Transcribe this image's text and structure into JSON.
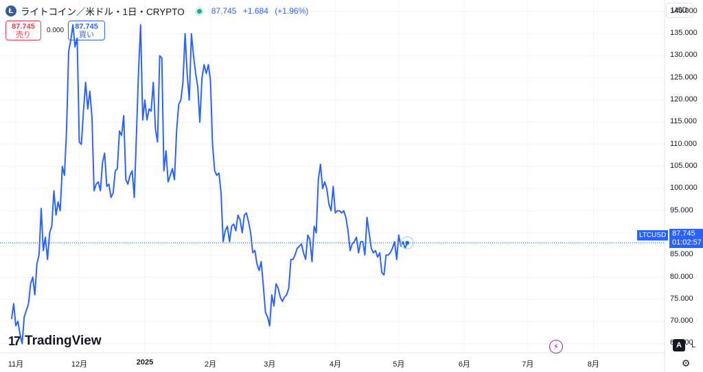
{
  "header": {
    "logo_letter": "Ł",
    "title": "ライトコイン／米ドル・1日・CRYPTO",
    "price": "87.745",
    "change": "+1.684",
    "change_pct": "(+1.96%)"
  },
  "trade": {
    "sell_price": "87.745",
    "sell_label": "売り",
    "spread": "0.000",
    "buy_price": "87.745",
    "buy_label": "買い"
  },
  "currency_button": "USD",
  "last_price_tag": {
    "symbol": "LTCUSD",
    "price": "87.745",
    "countdown": "01:02:57"
  },
  "brand": "TradingView",
  "brand_mark": "17",
  "controls": {
    "auto": "A",
    "log": "L",
    "bolt_icon": "lightning-icon",
    "settings_icon": "gear-icon"
  },
  "colors": {
    "line": "#2962ff",
    "accent": "#2962ff",
    "sell": "#f23645",
    "live": "#22ab94"
  },
  "chart_data": {
    "type": "line",
    "series": [
      {
        "name": "LTCUSD",
        "values": [
          70.5,
          74.0,
          69.0,
          70.0,
          67.0,
          65.0,
          71.0,
          72.5,
          74.0,
          78.5,
          80.0,
          76.0,
          83.0,
          85.0,
          95.5,
          86.0,
          89.0,
          84.0,
          90.0,
          91.5,
          99.5,
          94.0,
          97.0,
          95.0,
          105.0,
          103.0,
          113.5,
          131.0,
          133.5,
          137.0,
          132.0,
          134.0,
          110.5,
          110.0,
          117.5,
          124.0,
          118.0,
          122.0,
          116.0,
          99.5,
          101.0,
          101.5,
          99.5,
          106.0,
          108.0,
          100.5,
          101.0,
          98.0,
          99.0,
          104.0,
          104.5,
          113.0,
          112.0,
          116.5,
          102.0,
          101.0,
          103.0,
          104.0,
          98.0,
          112.0,
          126.5,
          137.0,
          115.5,
          120.0,
          115.5,
          118.0,
          117.5,
          124.0,
          113.5,
          110.5,
          130.0,
          129.5,
          104.0,
          108.5,
          101.5,
          103.0,
          104.5,
          102.0,
          113.0,
          119.0,
          120.0,
          124.0,
          135.0,
          126.0,
          120.0,
          135.0,
          130.0,
          126.0,
          123.0,
          115.0,
          125.0,
          128.0,
          126.0,
          128.0,
          124.5,
          110.0,
          104.0,
          103.0,
          103.5,
          99.0,
          88.0,
          90.5,
          91.5,
          88.0,
          91.5,
          92.0,
          90.5,
          94.0,
          93.0,
          90.0,
          94.0,
          94.5,
          92.5,
          90.0,
          85.5,
          86.0,
          83.0,
          81.5,
          83.5,
          78.0,
          72.0,
          71.0,
          69.0,
          76.0,
          73.5,
          78.5,
          77.5,
          75.5,
          74.5,
          75.5,
          76.0,
          77.5,
          84.0,
          84.0,
          85.0,
          86.5,
          87.0,
          87.5,
          85.5,
          84.0,
          89.5,
          88.5,
          83.5,
          91.5,
          90.0,
          102.0,
          105.5,
          100.0,
          101.5,
          100.0,
          96.5,
          95.0,
          100.5,
          94.5,
          95.0,
          95.0,
          94.5,
          95.0,
          93.5,
          90.5,
          86.0,
          87.5,
          88.0,
          89.0,
          85.5,
          88.0,
          88.0,
          85.0,
          93.5,
          90.0,
          86.5,
          85.5,
          86.0,
          84.5,
          85.5,
          81.0,
          80.5,
          85.0,
          85.0,
          85.5,
          86.5,
          88.0,
          84.0,
          89.5,
          87.0,
          88.0,
          86.5,
          87.745
        ]
      }
    ],
    "x_ticks": [
      "11月",
      "12月",
      "2025",
      "2月",
      "3月",
      "4月",
      "5月",
      "6月",
      "7月",
      "8月"
    ],
    "x_tick_days": [
      2,
      32,
      63,
      94,
      122,
      153,
      183,
      214,
      244,
      275
    ],
    "y_ticks": [
      65,
      70,
      75,
      80,
      85,
      90,
      95,
      100,
      105,
      110,
      115,
      120,
      125,
      130,
      135,
      140
    ],
    "y_tick_labels": [
      "65.000",
      "70.000",
      "75.000",
      "80.000",
      "85.000",
      "90.000",
      "95.000",
      "100.000",
      "105.000",
      "110.000",
      "115.000",
      "120.000",
      "125.000",
      "130.000",
      "135.000",
      "140.000"
    ],
    "ylim": [
      62.9,
      142.6
    ],
    "grid": true,
    "last_value": 87.745,
    "currency": "USD"
  }
}
